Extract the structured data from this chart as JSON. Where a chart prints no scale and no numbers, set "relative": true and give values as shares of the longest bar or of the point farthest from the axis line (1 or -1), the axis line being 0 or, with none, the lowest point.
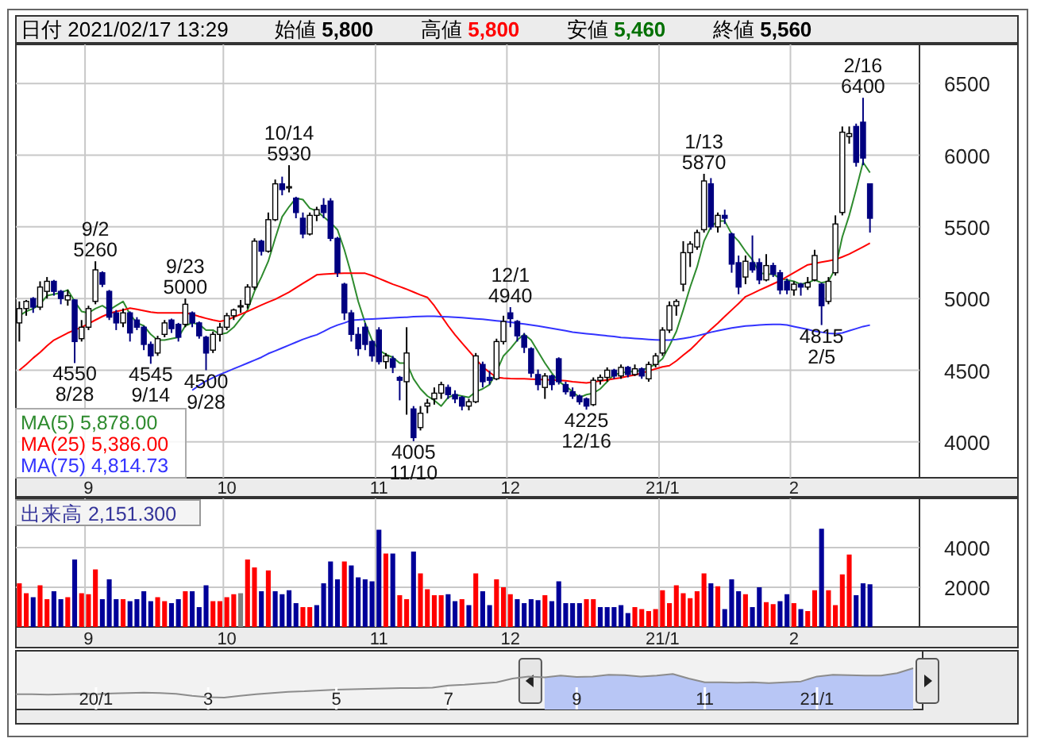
{
  "chart_data": [
    {
      "type": "candlestick",
      "title": "日付 2021/02/17 13:29",
      "annotations": [
        "始値 **5,800**",
        "高値 **5,800**",
        "安値 **5,460**",
        "終値 **5,560**",
        {
          "text": "9/2\n5260",
          "y": 5260
        },
        {
          "text": "4550\n8/28",
          "y": 4550
        },
        {
          "text": "4545\n9/14",
          "y": 4545
        },
        {
          "text": "9/23\n5000",
          "y": 5000
        },
        {
          "text": "4500\n9/28",
          "y": 4500
        },
        {
          "text": "10/14\n5930",
          "y": 5930
        },
        {
          "text": "4005\n11/10",
          "y": 4005
        },
        {
          "text": "12/1\n4940",
          "y": 4940
        },
        {
          "text": "4225\n12/16",
          "y": 4225
        },
        {
          "text": "1/13\n5870",
          "y": 5870
        },
        {
          "text": "4815\n2/5",
          "y": 4815
        },
        {
          "text": "2/16\n6400",
          "y": 6400
        }
      ],
      "categories": [
        null,
        null,
        null,
        null,
        null,
        null,
        null,
        null,
        null,
        null,
        "9",
        null,
        null,
        null,
        null,
        null,
        null,
        null,
        null,
        null,
        null,
        null,
        null,
        null,
        null,
        null,
        null,
        null,
        null,
        null,
        "10",
        null,
        null,
        null,
        null,
        null,
        null,
        null,
        null,
        null,
        null,
        null,
        null,
        null,
        null,
        null,
        null,
        null,
        null,
        null,
        null,
        null,
        "11",
        null,
        null,
        null,
        null,
        null,
        null,
        null,
        null,
        null,
        null,
        null,
        null,
        null,
        null,
        null,
        null,
        null,
        null,
        "12",
        null,
        null,
        null,
        null,
        null,
        null,
        null,
        null,
        null,
        null,
        null,
        null,
        null,
        null,
        null,
        null,
        null,
        null,
        null,
        null,
        null,
        "21/1",
        null,
        null,
        null,
        null,
        null,
        null,
        null,
        null,
        null,
        null,
        null,
        null,
        null,
        null,
        null,
        null,
        null,
        null,
        "2",
        null,
        null,
        null,
        null,
        null,
        null,
        null,
        null,
        null,
        null,
        null
      ],
      "ohlc": [
        [
          4830,
          4980,
          4700,
          4930
        ],
        [
          4930,
          4990,
          4880,
          4980
        ],
        [
          5000,
          5010,
          4900,
          4940
        ],
        [
          4940,
          5120,
          4920,
          5080
        ],
        [
          5050,
          5150,
          5000,
          5120
        ],
        [
          5120,
          5130,
          5020,
          5050
        ],
        [
          5050,
          5060,
          4960,
          5000
        ],
        [
          4990,
          5060,
          4950,
          5020
        ],
        [
          4990,
          4995,
          4550,
          4700
        ],
        [
          4720,
          4850,
          4700,
          4800
        ],
        [
          4800,
          4950,
          4780,
          4930
        ],
        [
          4980,
          5260,
          4960,
          5200
        ],
        [
          5180,
          5190,
          5080,
          5100
        ],
        [
          5050,
          5060,
          4850,
          4870
        ],
        [
          4900,
          4920,
          4780,
          4830
        ],
        [
          4830,
          4930,
          4800,
          4900
        ],
        [
          4900,
          4910,
          4700,
          4760
        ],
        [
          4850,
          4870,
          4780,
          4800
        ],
        [
          4800,
          4810,
          4640,
          4680
        ],
        [
          4680,
          4700,
          4545,
          4600
        ],
        [
          4620,
          4740,
          4600,
          4720
        ],
        [
          4750,
          4850,
          4730,
          4830
        ],
        [
          4850,
          4860,
          4760,
          4790
        ],
        [
          4820,
          4830,
          4700,
          4730
        ],
        [
          4820,
          5000,
          4800,
          4960
        ],
        [
          4900,
          4910,
          4800,
          4830
        ],
        [
          4830,
          4840,
          4720,
          4740
        ],
        [
          4730,
          4740,
          4500,
          4620
        ],
        [
          4640,
          4770,
          4620,
          4750
        ],
        [
          4750,
          4830,
          4700,
          4800
        ],
        [
          4800,
          4900,
          4780,
          4880
        ],
        [
          4880,
          4930,
          4850,
          4920
        ],
        [
          4950,
          4990,
          4900,
          4950
        ],
        [
          4960,
          5100,
          4930,
          5080
        ],
        [
          5080,
          5420,
          5060,
          5400
        ],
        [
          5400,
          5410,
          5300,
          5330
        ],
        [
          5330,
          5600,
          5320,
          5550
        ],
        [
          5550,
          5830,
          5540,
          5800
        ],
        [
          5800,
          5850,
          5720,
          5760
        ],
        [
          5780,
          5930,
          5740,
          5780
        ],
        [
          5700,
          5710,
          5560,
          5600
        ],
        [
          5560,
          5600,
          5420,
          5450
        ],
        [
          5450,
          5600,
          5440,
          5580
        ],
        [
          5580,
          5640,
          5540,
          5620
        ],
        [
          5650,
          5700,
          5560,
          5600
        ],
        [
          5680,
          5700,
          5400,
          5420
        ],
        [
          5420,
          5430,
          5150,
          5180
        ],
        [
          5100,
          5110,
          4850,
          4900
        ],
        [
          4900,
          4920,
          4700,
          4750
        ],
        [
          4750,
          4800,
          4600,
          4650
        ],
        [
          4800,
          4830,
          4640,
          4680
        ],
        [
          4700,
          4710,
          4560,
          4600
        ],
        [
          4780,
          4800,
          4540,
          4560
        ],
        [
          4560,
          4620,
          4510,
          4600
        ],
        [
          4580,
          4600,
          4480,
          4520
        ],
        [
          4450,
          4460,
          4290,
          4430
        ],
        [
          4420,
          4800,
          4190,
          4620
        ],
        [
          4230,
          4250,
          4005,
          4030
        ],
        [
          4100,
          4250,
          4080,
          4200
        ],
        [
          4250,
          4300,
          4200,
          4270
        ],
        [
          4300,
          4380,
          4260,
          4340
        ],
        [
          4340,
          4420,
          4300,
          4400
        ],
        [
          4380,
          4400,
          4300,
          4330
        ],
        [
          4330,
          4360,
          4270,
          4300
        ],
        [
          4310,
          4320,
          4220,
          4250
        ],
        [
          4250,
          4300,
          4220,
          4280
        ],
        [
          4280,
          4620,
          4270,
          4600
        ],
        [
          4540,
          4560,
          4380,
          4420
        ],
        [
          4450,
          4495,
          4400,
          4430
        ],
        [
          4440,
          4720,
          4430,
          4700
        ],
        [
          4700,
          4880,
          4680,
          4840
        ],
        [
          4900,
          4940,
          4800,
          4860
        ],
        [
          4840,
          4850,
          4700,
          4740
        ],
        [
          4740,
          4760,
          4620,
          4660
        ],
        [
          4650,
          4660,
          4450,
          4480
        ],
        [
          4470,
          4505,
          4360,
          4400
        ],
        [
          4380,
          4480,
          4300,
          4460
        ],
        [
          4460,
          4470,
          4360,
          4400
        ],
        [
          4580,
          4590,
          4400,
          4420
        ],
        [
          4400,
          4420,
          4330,
          4350
        ],
        [
          4350,
          4380,
          4300,
          4320
        ],
        [
          4320,
          4330,
          4260,
          4280
        ],
        [
          4300,
          4310,
          4225,
          4250
        ],
        [
          4260,
          4450,
          4250,
          4430
        ],
        [
          4430,
          4470,
          4400,
          4450
        ],
        [
          4450,
          4520,
          4420,
          4500
        ],
        [
          4500,
          4510,
          4440,
          4460
        ],
        [
          4460,
          4540,
          4440,
          4520
        ],
        [
          4520,
          4530,
          4450,
          4470
        ],
        [
          4470,
          4540,
          4460,
          4510
        ],
        [
          4510,
          4520,
          4440,
          4460
        ],
        [
          4440,
          4560,
          4420,
          4540
        ],
        [
          4540,
          4620,
          4520,
          4600
        ],
        [
          4620,
          4800,
          4600,
          4780
        ],
        [
          4780,
          4980,
          4760,
          4950
        ],
        [
          4950,
          4995,
          4880,
          4980
        ],
        [
          5100,
          5400,
          5050,
          5320
        ],
        [
          5320,
          5400,
          5220,
          5380
        ],
        [
          5360,
          5480,
          5340,
          5460
        ],
        [
          5480,
          5870,
          5460,
          5820
        ],
        [
          5800,
          5840,
          5480,
          5500
        ],
        [
          5500,
          5600,
          5460,
          5580
        ],
        [
          5580,
          5620,
          5520,
          5560
        ],
        [
          5450,
          5460,
          5180,
          5240
        ],
        [
          5250,
          5300,
          5030,
          5080
        ],
        [
          5150,
          5300,
          5100,
          5260
        ],
        [
          5250,
          5440,
          5180,
          5200
        ],
        [
          5250,
          5280,
          5100,
          5130
        ],
        [
          5130,
          5310,
          5120,
          5230
        ],
        [
          5230,
          5250,
          5150,
          5170
        ],
        [
          5180,
          5200,
          5030,
          5060
        ],
        [
          5120,
          5140,
          5030,
          5060
        ],
        [
          5060,
          5120,
          5020,
          5100
        ],
        [
          5100,
          5110,
          5020,
          5080
        ],
        [
          5080,
          5150,
          5060,
          5110
        ],
        [
          5130,
          5340,
          5120,
          5300
        ],
        [
          5100,
          5110,
          4815,
          4950
        ],
        [
          4980,
          5150,
          4960,
          5120
        ],
        [
          5180,
          5580,
          5160,
          5520
        ],
        [
          5600,
          6200,
          5580,
          6160
        ],
        [
          6130,
          6200,
          6080,
          6150
        ],
        [
          6200,
          6220,
          5920,
          5950
        ],
        [
          6230,
          6400,
          5930,
          5980
        ],
        [
          5800,
          5800,
          5460,
          5560
        ]
      ],
      "series": [
        {
          "name": "MA(5) 5,878.00",
          "type": "line",
          "color": "#2e8b2e",
          "values": [
            4880,
            4910,
            4930,
            4960,
            5020,
            5030,
            5040,
            5060,
            4980,
            4910,
            4900,
            4930,
            4950,
            4920,
            4950,
            4980,
            4890,
            4830,
            4810,
            4750,
            4710,
            4710,
            4720,
            4730,
            4810,
            4830,
            4820,
            4780,
            4780,
            4750,
            4760,
            4800,
            4860,
            4920,
            5050,
            5150,
            5260,
            5420,
            5570,
            5640,
            5700,
            5690,
            5630,
            5610,
            5570,
            5530,
            5480,
            5340,
            5170,
            4980,
            4830,
            4710,
            4640,
            4610,
            4590,
            4550,
            4550,
            4440,
            4370,
            4320,
            4290,
            4250,
            4310,
            4330,
            4320,
            4310,
            4350,
            4370,
            4400,
            4490,
            4600,
            4650,
            4710,
            4750,
            4710,
            4630,
            4550,
            4480,
            4420,
            4390,
            4350,
            4310,
            4330,
            4340,
            4370,
            4420,
            4470,
            4480,
            4490,
            4490,
            4500,
            4520,
            4540,
            4580,
            4670,
            4770,
            4920,
            5080,
            5220,
            5400,
            5500,
            5540,
            5540,
            5450,
            5400,
            5330,
            5270,
            5180,
            5170,
            5170,
            5140,
            5130,
            5120,
            5100,
            5110,
            5130,
            5110,
            5120,
            5210,
            5430,
            5580,
            5760,
            5950,
            5878
          ]
        },
        {
          "name": "MA(25) 5,386.00",
          "type": "line",
          "color": "#ff0000",
          "values": [
            4500,
            4540,
            4585,
            4625,
            4670,
            4710,
            4735,
            4760,
            4780,
            4800,
            4825,
            4850,
            4875,
            4896,
            4910,
            4920,
            4933,
            4925,
            4915,
            4905,
            4900,
            4900,
            4900,
            4900,
            4900,
            4890,
            4875,
            4862,
            4850,
            4840,
            4850,
            4870,
            4890,
            4910,
            4933,
            4955,
            4975,
            4995,
            5020,
            5045,
            5075,
            5105,
            5135,
            5165,
            5170,
            5172,
            5175,
            5176,
            5176,
            5176,
            5176,
            5160,
            5140,
            5120,
            5100,
            5083,
            5065,
            5045,
            5025,
            5008,
            4950,
            4880,
            4810,
            4747,
            4690,
            4635,
            4580,
            4523,
            4485,
            4450,
            4445,
            4442,
            4441,
            4440,
            4438,
            4436,
            4434,
            4432,
            4430,
            4426,
            4420,
            4415,
            4411,
            4418,
            4425,
            4432,
            4440,
            4448,
            4458,
            4467,
            4480,
            4495,
            4510,
            4523,
            4532,
            4565,
            4605,
            4643,
            4690,
            4740,
            4785,
            4828,
            4875,
            4920,
            4965,
            5013,
            5035,
            5058,
            5080,
            5102,
            5124,
            5152,
            5180,
            5208,
            5235,
            5245,
            5254,
            5263,
            5272,
            5290,
            5310,
            5335,
            5360,
            5386
          ]
        },
        {
          "name": "MA(75) 4,814.73",
          "type": "line",
          "color": "#3333ff",
          "values": [
            null,
            null,
            null,
            null,
            null,
            null,
            null,
            null,
            null,
            null,
            null,
            null,
            null,
            null,
            null,
            null,
            null,
            null,
            null,
            null,
            null,
            null,
            null,
            null,
            null,
            4360,
            4395,
            4425,
            4448,
            4470,
            4490,
            4510,
            4530,
            4550,
            4570,
            4590,
            4616,
            4635,
            4655,
            4675,
            4695,
            4715,
            4732,
            4747,
            4770,
            4795,
            4815,
            4830,
            4848,
            4852,
            4855,
            4857,
            4860,
            4862,
            4865,
            4868,
            4870,
            4873,
            4875,
            4877,
            4876,
            4874,
            4872,
            4870,
            4867,
            4863,
            4859,
            4855,
            4850,
            4845,
            4840,
            4835,
            4828,
            4822,
            4815,
            4808,
            4800,
            4792,
            4784,
            4775,
            4766,
            4760,
            4755,
            4750,
            4745,
            4740,
            4735,
            4728,
            4725,
            4722,
            4718,
            4715,
            4712,
            4710,
            4710,
            4715,
            4722,
            4730,
            4740,
            4752,
            4765,
            4775,
            4785,
            4795,
            4802,
            4809,
            4812,
            4815,
            4818,
            4819,
            4820,
            4815,
            4805,
            4795,
            4785,
            4772,
            4765,
            4758,
            4754,
            4760,
            4775,
            4790,
            4805,
            4814.73
          ]
        }
      ],
      "ylim": [
        3750,
        6750
      ],
      "yticks": [
        4000,
        4500,
        5000,
        5500,
        6000,
        6500
      ],
      "grid": true,
      "legend": "bottom left"
    },
    {
      "type": "bar",
      "title": "出来高 2,151.300",
      "categories": [
        null,
        null,
        null,
        null,
        null,
        null,
        null,
        null,
        null,
        null,
        "9",
        null,
        null,
        null,
        null,
        null,
        null,
        null,
        null,
        null,
        null,
        null,
        null,
        null,
        null,
        null,
        null,
        null,
        null,
        null,
        "10",
        null,
        null,
        null,
        null,
        null,
        null,
        null,
        null,
        null,
        null,
        null,
        null,
        null,
        null,
        null,
        null,
        null,
        null,
        null,
        null,
        null,
        "11",
        null,
        null,
        null,
        null,
        null,
        null,
        null,
        null,
        null,
        null,
        null,
        null,
        null,
        null,
        null,
        null,
        null,
        null,
        "12",
        null,
        null,
        null,
        null,
        null,
        null,
        null,
        null,
        null,
        null,
        null,
        null,
        null,
        null,
        null,
        null,
        null,
        null,
        null,
        null,
        null,
        "21/1",
        null,
        null,
        null,
        null,
        null,
        null,
        null,
        null,
        null,
        null,
        null,
        null,
        null,
        null,
        null,
        null,
        null,
        null,
        "2",
        null,
        null,
        null,
        null,
        null,
        null,
        null,
        null,
        null,
        null,
        null
      ],
      "values": [
        2200,
        1700,
        1500,
        2100,
        1400,
        1800,
        1400,
        1500,
        3400,
        1700,
        1650,
        2900,
        1400,
        2400,
        1400,
        1400,
        1300,
        1400,
        1800,
        1300,
        1500,
        1300,
        1200,
        1400,
        1800,
        1800,
        1000,
        2100,
        1300,
        1300,
        1500,
        1650,
        1700,
        3400,
        3000,
        1800,
        2850,
        1800,
        1650,
        1850,
        1200,
        1000,
        1000,
        1100,
        2200,
        3300,
        2400,
        3300,
        3100,
        2500,
        2400,
        2300,
        4900,
        3700,
        3700,
        1600,
        1400,
        3800,
        2700,
        1900,
        1600,
        1600,
        1650,
        1300,
        1400,
        1100,
        2700,
        1800,
        1100,
        2400,
        2000,
        1650,
        1400,
        1200,
        1400,
        1350,
        1600,
        1300,
        2300,
        1200,
        1200,
        1200,
        1400,
        1400,
        1000,
        1000,
        1000,
        1100,
        700,
        1000,
        900,
        800,
        900,
        1850,
        1200,
        2100,
        1700,
        1450,
        1800,
        2700,
        2200,
        2050,
        900,
        2400,
        1800,
        1650,
        1000,
        2000,
        1250,
        1150,
        1300,
        1650,
        1200,
        900,
        800,
        1850,
        4950,
        1850,
        1100,
        2650,
        3650,
        1600,
        2200,
        2151.3
      ],
      "colors": [
        "#ff0000",
        "#ff0000",
        "#000099",
        "#ff0000",
        "#ff0000",
        "#000099",
        "#000099",
        "#ff0000",
        "#000099",
        "#ff0000",
        "#ff0000",
        "#ff0000",
        "#000099",
        "#000099",
        "#000099",
        "#ff0000",
        "#000099",
        "#000099",
        "#000099",
        "#000099",
        "#ff0000",
        "#ff0000",
        "#000099",
        "#000099",
        "#ff0000",
        "#000099",
        "#000099",
        "#000099",
        "#ff0000",
        "#ff0000",
        "#ff0000",
        "#ff0000",
        "#808080",
        "#ff0000",
        "#ff0000",
        "#000099",
        "#ff0000",
        "#000099",
        "#000099",
        "#000099",
        "#000099",
        "#ff0000",
        "#ff0000",
        "#000099",
        "#000099",
        "#000099",
        "#000099",
        "#ff0000",
        "#000099",
        "#000099",
        "#000099",
        "#000099",
        "#000099",
        "#ff0000",
        "#000099",
        "#ff0000",
        "#ff0000",
        "#000099",
        "#ff0000",
        "#ff0000",
        "#ff0000",
        "#ff0000",
        "#000099",
        "#000099",
        "#ff0000",
        "#000099",
        "#ff0000",
        "#000099",
        "#000099",
        "#ff0000",
        "#ff0000",
        "#ff0000",
        "#000099",
        "#000099",
        "#000099",
        "#000099",
        "#ff0000",
        "#000099",
        "#000099",
        "#000099",
        "#000099",
        "#000099",
        "#ff0000",
        "#ff0000",
        "#000099",
        "#000099",
        "#000099",
        "#000099",
        "#000099",
        "#ff0000",
        "#ff0000",
        "#ff0000",
        "#ff0000",
        "#ff0000",
        "#ff0000",
        "#ff0000",
        "#ff0000",
        "#ff0000",
        "#ff0000",
        "#ff0000",
        "#000099",
        "#ff0000",
        "#000099",
        "#000099",
        "#000099",
        "#ff0000",
        "#000099",
        "#000099",
        "#ff0000",
        "#ff0000",
        "#000099",
        "#000099",
        "#ff0000",
        "#000099",
        "#ff0000",
        "#ff0000",
        "#000099",
        "#ff0000",
        "#ff0000",
        "#ff0000",
        "#ff0000",
        "#000099",
        "#000099",
        "#000099"
      ],
      "ylim": [
        0,
        6400
      ],
      "yticks": [
        2000,
        4000
      ],
      "grid": true
    },
    {
      "type": "line",
      "relative": true,
      "categories": [
        null,
        null,
        null,
        null,
        null,
        "20/1",
        null,
        null,
        null,
        null,
        null,
        null,
        "3",
        null,
        null,
        null,
        null,
        null,
        null,
        null,
        "5",
        null,
        null,
        null,
        null,
        null,
        null,
        "7",
        null,
        null,
        null,
        null,
        null,
        null,
        null,
        "9",
        null,
        null,
        null,
        null,
        null,
        null,
        null,
        "11",
        null,
        null,
        null,
        null,
        null,
        null,
        "21/1",
        null,
        null,
        null,
        null,
        null,
        null
      ],
      "series": [
        {
          "type": "line",
          "color": "#8c8c8c",
          "values": [
            0.37,
            0.37,
            0.36,
            0.37,
            0.38,
            0.37,
            0.39,
            0.4,
            0.41,
            0.4,
            0.38,
            0.33,
            0.3,
            0.29,
            0.33,
            0.37,
            0.4,
            0.43,
            0.44,
            0.46,
            0.48,
            0.49,
            0.5,
            0.51,
            0.52,
            0.52,
            0.53,
            0.58,
            0.6,
            0.63,
            0.66,
            0.75,
            0.8,
            0.78,
            0.82,
            0.79,
            0.8,
            0.84,
            0.83,
            0.8,
            0.82,
            0.86,
            0.75,
            0.66,
            0.66,
            0.65,
            0.66,
            0.64,
            0.66,
            0.68,
            0.8,
            0.84,
            0.83,
            0.82,
            0.82,
            0.88,
            1.0
          ]
        },
        {
          "type": "area",
          "color": "#b8c6f5",
          "values": [
            null,
            null,
            null,
            null,
            null,
            null,
            null,
            null,
            null,
            null,
            null,
            null,
            null,
            null,
            null,
            null,
            null,
            null,
            null,
            null,
            null,
            null,
            null,
            null,
            null,
            null,
            null,
            null,
            null,
            null,
            null,
            null,
            null,
            0.78,
            0.82,
            0.79,
            0.8,
            0.84,
            0.83,
            0.8,
            0.82,
            0.86,
            0.75,
            0.66,
            0.66,
            0.65,
            0.66,
            0.64,
            0.66,
            0.68,
            0.8,
            0.84,
            0.83,
            0.82,
            0.82,
            0.88,
            1.0
          ]
        }
      ]
    }
  ]
}
